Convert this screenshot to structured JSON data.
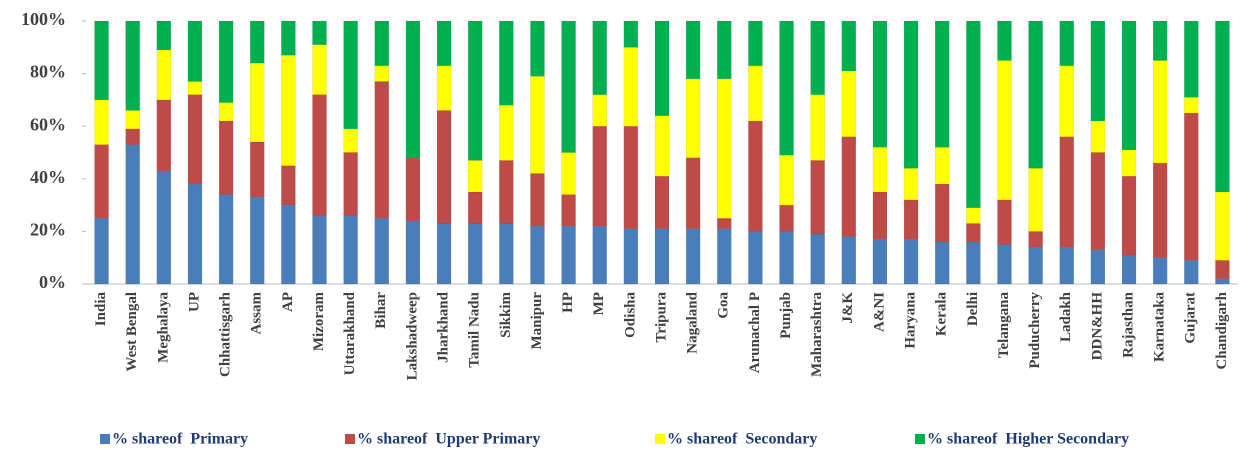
{
  "chart_data": {
    "type": "stacked_bar",
    "categories": [
      "India",
      "West Bengal",
      "Meghalaya",
      "UP",
      "Chhattisgarh",
      "Assam",
      "AP",
      "Mizoram",
      "Uttarakhand",
      "Bihar",
      "Lakshadweep",
      "Jharkhand",
      "Tamil Nadu",
      "Sikkim",
      "Manipur",
      "HP",
      "MP",
      "Odisha",
      "Tripura",
      "Nagaland",
      "Goa",
      "Arunachal P",
      "Punjab",
      "Maharashtra",
      "J&K",
      "A&NI",
      "Haryana",
      "Kerala",
      "Delhi",
      "Telangana",
      "Puducherry",
      "Ladakh",
      "DDN&HH",
      "Rajasthan",
      "Karnataka",
      "Gujarat",
      "Chandigarh"
    ],
    "series": [
      {
        "name": "% shareof  Primary",
        "color": "#4a7ebb",
        "values": [
          25,
          53,
          43,
          38,
          34,
          33,
          30,
          26,
          26,
          25,
          24,
          23,
          23,
          23,
          22,
          22,
          22,
          21,
          21,
          21,
          21,
          20,
          20,
          19,
          18,
          17,
          17,
          16,
          16,
          15,
          14,
          14,
          13,
          11,
          10,
          9,
          2
        ]
      },
      {
        "name": "% shareof  Upper Primary",
        "color": "#be4b48",
        "values": [
          28,
          6,
          27,
          34,
          28,
          21,
          15,
          46,
          24,
          52,
          24,
          43,
          12,
          24,
          20,
          12,
          38,
          39,
          20,
          27,
          4,
          42,
          10,
          28,
          38,
          18,
          15,
          22,
          7,
          17,
          6,
          42,
          37,
          30,
          36,
          56,
          7
        ]
      },
      {
        "name": "% shareof  Secondary",
        "color": "#ffff00",
        "values": [
          17,
          7,
          19,
          5,
          7,
          30,
          42,
          19,
          9,
          6,
          0,
          17,
          12,
          21,
          37,
          16,
          12,
          30,
          23,
          30,
          53,
          21,
          19,
          25,
          25,
          17,
          12,
          14,
          6,
          53,
          24,
          27,
          12,
          10,
          39,
          6,
          26
        ]
      },
      {
        "name": "% shareof  Higher Secondary",
        "color": "#00b050",
        "values": [
          30,
          34,
          11,
          23,
          31,
          16,
          13,
          9,
          41,
          17,
          52,
          17,
          53,
          32,
          21,
          50,
          28,
          10,
          36,
          22,
          22,
          17,
          51,
          28,
          19,
          48,
          56,
          48,
          71,
          15,
          56,
          17,
          38,
          49,
          15,
          29,
          65
        ]
      }
    ],
    "ylim": [
      0,
      100
    ],
    "yticks": [
      {
        "value": 0,
        "label": "0%"
      },
      {
        "value": 20,
        "label": "20%"
      },
      {
        "value": 40,
        "label": "40%"
      },
      {
        "value": 60,
        "label": "60%"
      },
      {
        "value": 80,
        "label": "80%"
      },
      {
        "value": 100,
        "label": "100%"
      }
    ],
    "grid": false,
    "legend": "bottom"
  }
}
